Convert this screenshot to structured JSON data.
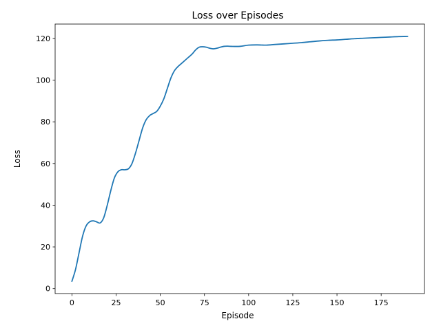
{
  "chart_data": {
    "type": "line",
    "title": "Loss over Episodes",
    "xlabel": "Episode",
    "ylabel": "Loss",
    "xlim": [
      -9.5,
      199.5
    ],
    "ylim": [
      -2.4,
      126.9
    ],
    "xticks": [
      0,
      25,
      50,
      75,
      100,
      125,
      150,
      175
    ],
    "yticks": [
      0,
      20,
      40,
      60,
      80,
      100,
      120
    ],
    "grid": false,
    "legend": "none",
    "series": [
      {
        "color": "#1f77b4",
        "x": [
          0,
          2,
          4,
          6,
          8,
          10,
          12,
          14,
          16,
          18,
          20,
          22,
          24,
          26,
          28,
          30,
          32,
          34,
          36,
          38,
          40,
          42,
          44,
          46,
          48,
          50,
          52,
          54,
          56,
          58,
          60,
          62,
          64,
          66,
          68,
          70,
          72,
          74,
          76,
          78,
          80,
          82,
          84,
          86,
          88,
          90,
          95,
          100,
          105,
          110,
          115,
          120,
          125,
          130,
          135,
          140,
          145,
          150,
          155,
          160,
          165,
          170,
          175,
          180,
          185,
          190
        ],
        "y": [
          3.5,
          9,
          17,
          25,
          30,
          32,
          32.5,
          32,
          31.5,
          34,
          40,
          47,
          53,
          56,
          57,
          57,
          57.5,
          60,
          65,
          71,
          77,
          81,
          83,
          84,
          85,
          87.5,
          91,
          96,
          101,
          104.5,
          106.5,
          108,
          109.5,
          111,
          112.5,
          114.5,
          115.8,
          116,
          115.8,
          115.3,
          115,
          115.3,
          115.8,
          116.2,
          116.3,
          116.2,
          116.2,
          116.8,
          116.9,
          116.8,
          117.1,
          117.4,
          117.7,
          118,
          118.4,
          118.8,
          119.1,
          119.3,
          119.6,
          119.9,
          120.1,
          120.3,
          120.5,
          120.7,
          120.9,
          121
        ]
      }
    ]
  }
}
